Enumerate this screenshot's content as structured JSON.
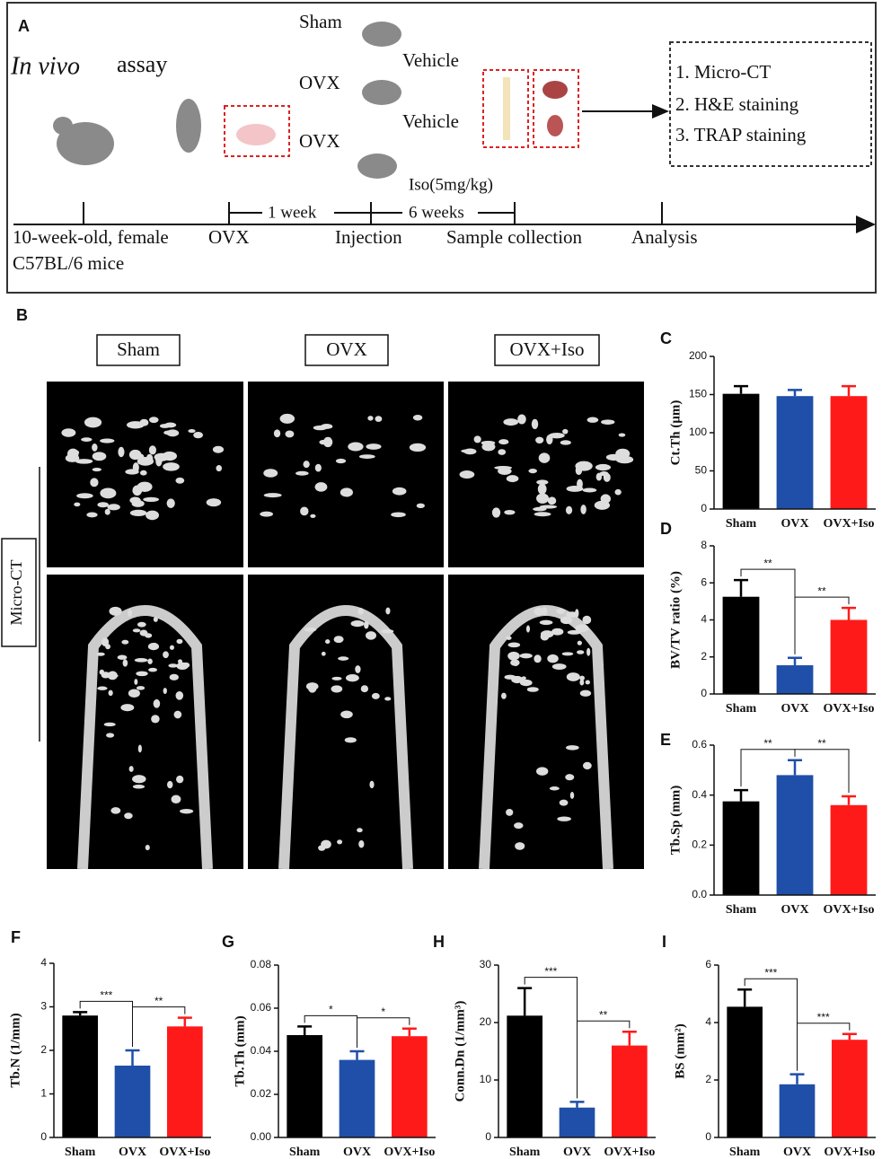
{
  "panel_a": {
    "label": "A",
    "title_italic": "In vivo",
    "title": "assay",
    "groups": [
      {
        "name": "Sham",
        "treatment": "Vehicle"
      },
      {
        "name": "OVX",
        "treatment": "Vehicle"
      },
      {
        "name": "OVX",
        "treatment": "Iso(5mg/kg)"
      }
    ],
    "intervals": [
      "1 week",
      "6 weeks"
    ],
    "timeline": [
      "10-week-old, female",
      "OVX",
      "Injection",
      "Sample collection",
      "Analysis"
    ],
    "timeline_note": "C57BL/6 mice",
    "analyses": [
      "1. Micro-CT",
      "2. H&E staining",
      "3. TRAP staining"
    ]
  },
  "panel_b": {
    "label": "B",
    "groups": [
      "Sham",
      "OVX",
      "OVX+Iso"
    ],
    "row_label": "Micro-CT"
  },
  "chart_data": [
    {
      "type": "bar",
      "label": "C",
      "ylabel": "Ct.Th (μm)",
      "categories": [
        "Sham",
        "OVX",
        "OVX+Iso"
      ],
      "values": [
        151,
        148,
        148
      ],
      "errors": [
        10,
        8,
        13
      ],
      "colors": [
        "#000000",
        "#1f4fa8",
        "#ff1a1a"
      ],
      "ylim": [
        0,
        200
      ],
      "yticks": [
        0,
        50,
        100,
        150,
        200
      ],
      "significance": []
    },
    {
      "type": "bar",
      "label": "D",
      "ylabel": "BV/TV ratio (%)",
      "categories": [
        "Sham",
        "OVX",
        "OVX+Iso"
      ],
      "values": [
        5.25,
        1.55,
        4.0
      ],
      "errors": [
        0.9,
        0.4,
        0.65
      ],
      "colors": [
        "#000000",
        "#1f4fa8",
        "#ff1a1a"
      ],
      "ylim": [
        0,
        8
      ],
      "yticks": [
        0,
        2,
        4,
        6,
        8
      ],
      "significance": [
        {
          "from": 0,
          "to": 1,
          "label": "**"
        },
        {
          "from": 1,
          "to": 2,
          "label": "**"
        }
      ]
    },
    {
      "type": "bar",
      "label": "E",
      "ylabel": "Tb.Sp (mm)",
      "categories": [
        "Sham",
        "OVX",
        "OVX+Iso"
      ],
      "values": [
        0.375,
        0.48,
        0.36
      ],
      "errors": [
        0.045,
        0.06,
        0.035
      ],
      "colors": [
        "#000000",
        "#1f4fa8",
        "#ff1a1a"
      ],
      "ylim": [
        0,
        0.6
      ],
      "yticks": [
        {
          "value": 0,
          "label": "0.0"
        },
        0.2,
        0.4,
        0.6
      ],
      "significance": [
        {
          "from": 0,
          "to": 1,
          "label": "**"
        },
        {
          "from": 1,
          "to": 2,
          "label": "**"
        }
      ]
    },
    {
      "type": "bar",
      "label": "F",
      "ylabel": "Tb.N (1/mm)",
      "categories": [
        "Sham",
        "OVX",
        "OVX+Iso"
      ],
      "values": [
        2.8,
        1.65,
        2.55
      ],
      "errors": [
        0.08,
        0.35,
        0.2
      ],
      "colors": [
        "#000000",
        "#1f4fa8",
        "#ff1a1a"
      ],
      "ylim": [
        0,
        4
      ],
      "yticks": [
        0,
        1,
        2,
        3,
        4
      ],
      "significance": [
        {
          "from": 0,
          "to": 1,
          "label": "***"
        },
        {
          "from": 1,
          "to": 2,
          "label": "**"
        }
      ]
    },
    {
      "type": "bar",
      "label": "G",
      "ylabel": "Tb.Th (mm)",
      "categories": [
        "Sham",
        "OVX",
        "OVX+Iso"
      ],
      "values": [
        0.0475,
        0.036,
        0.047
      ],
      "errors": [
        0.004,
        0.004,
        0.0035
      ],
      "colors": [
        "#000000",
        "#1f4fa8",
        "#ff1a1a"
      ],
      "ylim": [
        0,
        0.08
      ],
      "yticks": [
        {
          "value": 0,
          "label": "0.00"
        },
        0.02,
        0.04,
        0.06,
        0.08
      ],
      "significance": [
        {
          "from": 0,
          "to": 1,
          "label": "*"
        },
        {
          "from": 1,
          "to": 2,
          "label": "*"
        }
      ]
    },
    {
      "type": "bar",
      "label": "H",
      "ylabel": "Conn.Dn (1/mm³)",
      "categories": [
        "Sham",
        "OVX",
        "OVX+Iso"
      ],
      "values": [
        21.2,
        5.2,
        16
      ],
      "errors": [
        4.8,
        1,
        2.4
      ],
      "colors": [
        "#000000",
        "#1f4fa8",
        "#ff1a1a"
      ],
      "ylim": [
        0,
        30
      ],
      "yticks": [
        0,
        10,
        20,
        30
      ],
      "significance": [
        {
          "from": 0,
          "to": 1,
          "label": "***"
        },
        {
          "from": 1,
          "to": 2,
          "label": "**"
        }
      ]
    },
    {
      "type": "bar",
      "label": "I",
      "ylabel": "BS (mm²)",
      "categories": [
        "Sham",
        "OVX",
        "OVX+Iso"
      ],
      "values": [
        4.55,
        1.85,
        3.4
      ],
      "errors": [
        0.6,
        0.35,
        0.2
      ],
      "colors": [
        "#000000",
        "#1f4fa8",
        "#ff1a1a"
      ],
      "ylim": [
        0,
        6
      ],
      "yticks": [
        0,
        2,
        4,
        6
      ],
      "significance": [
        {
          "from": 0,
          "to": 1,
          "label": "***"
        },
        {
          "from": 1,
          "to": 2,
          "label": "***"
        }
      ]
    }
  ]
}
